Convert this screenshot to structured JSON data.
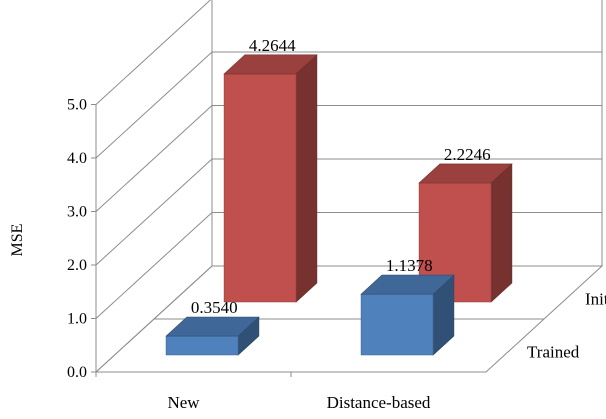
{
  "chart_data": {
    "type": "bar",
    "style": "3d-clustered-depth",
    "categories": [
      "New",
      "Distance-based"
    ],
    "series": [
      {
        "name": "Trained",
        "values": [
          0.354,
          1.1378
        ],
        "labels": [
          "0.3540",
          "1.1378"
        ],
        "color": "#4f81bd"
      },
      {
        "name": "Initial",
        "values": [
          4.2644,
          2.2246
        ],
        "labels": [
          "4.2644",
          "2.2246"
        ],
        "color": "#c0504d"
      }
    ],
    "ylabel": "MSE",
    "ylim": [
      0,
      5
    ],
    "yticks": [
      "0.0",
      "1.0",
      "2.0",
      "3.0",
      "4.0",
      "5.0"
    ],
    "grid": true,
    "legend": "none"
  }
}
